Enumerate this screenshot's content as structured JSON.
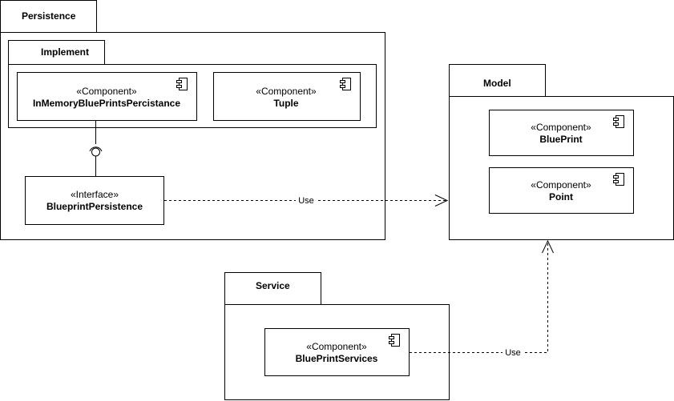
{
  "packages": {
    "persistence": {
      "title": "Persistence"
    },
    "implement": {
      "title": "Implement"
    },
    "model": {
      "title": "Model"
    },
    "service": {
      "title": "Service"
    }
  },
  "components": {
    "in_memory": {
      "stereotype": "«Component»",
      "name": "InMemoryBluePrintsPercistance"
    },
    "tuple": {
      "stereotype": "«Component»",
      "name": "Tuple"
    },
    "blueprint_persistence": {
      "stereotype": "«Interface»",
      "name": "BlueprintPersistence"
    },
    "blueprint": {
      "stereotype": "«Component»",
      "name": "BluePrint"
    },
    "point": {
      "stereotype": "«Component»",
      "name": "Point"
    },
    "blueprint_services": {
      "stereotype": "«Component»",
      "name": "BluePrintServices"
    }
  },
  "edges": {
    "persistence_to_model": {
      "label": "Use"
    },
    "service_to_model": {
      "label": "Use"
    }
  }
}
